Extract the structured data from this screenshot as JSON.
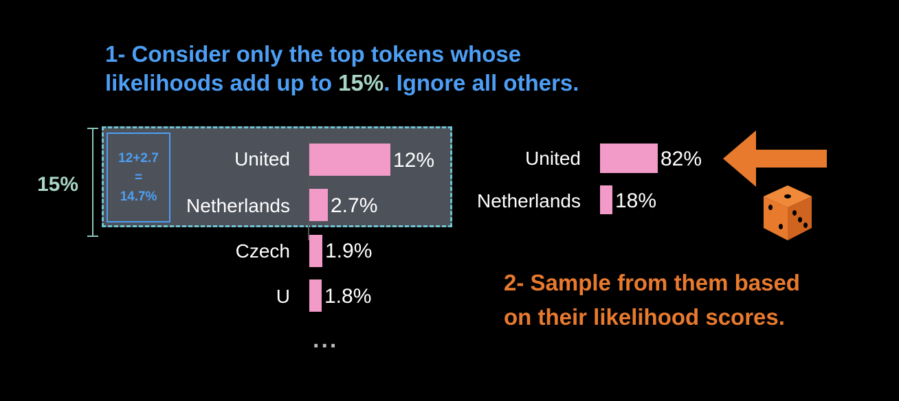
{
  "heading": {
    "line1": "1- Consider only the top tokens whose",
    "line2_pre": "likelihoods add up to ",
    "line2_accent": "15%",
    "line2_post": ".  Ignore all others."
  },
  "bracket_label": "15%",
  "sum_box": {
    "line1": "12+2.7",
    "line2": "=",
    "line3": "14.7%"
  },
  "left_chart": {
    "items": [
      {
        "label": "United",
        "value_label": "12%",
        "value": 12
      },
      {
        "label": "Netherlands",
        "value_label": "2.7%",
        "value": 2.7
      },
      {
        "label": "Czech",
        "value_label": "1.9%",
        "value": 1.9
      },
      {
        "label": "U",
        "value_label": "1.8%",
        "value": 1.8
      }
    ],
    "more": "..."
  },
  "right_chart": {
    "items": [
      {
        "label": "United",
        "value_label": "82%",
        "value": 82
      },
      {
        "label": "Netherlands",
        "value_label": "18%",
        "value": 18
      }
    ]
  },
  "sample_text": {
    "line1": "2- Sample from them based",
    "line2": "on their likelihood scores."
  },
  "colors": {
    "blue": "#4d9ff5",
    "teal": "#a8d5c7",
    "pink": "#f29ac8",
    "orange": "#e87a2e"
  },
  "icons": [
    "arrow-left-icon",
    "dice-icon"
  ]
}
